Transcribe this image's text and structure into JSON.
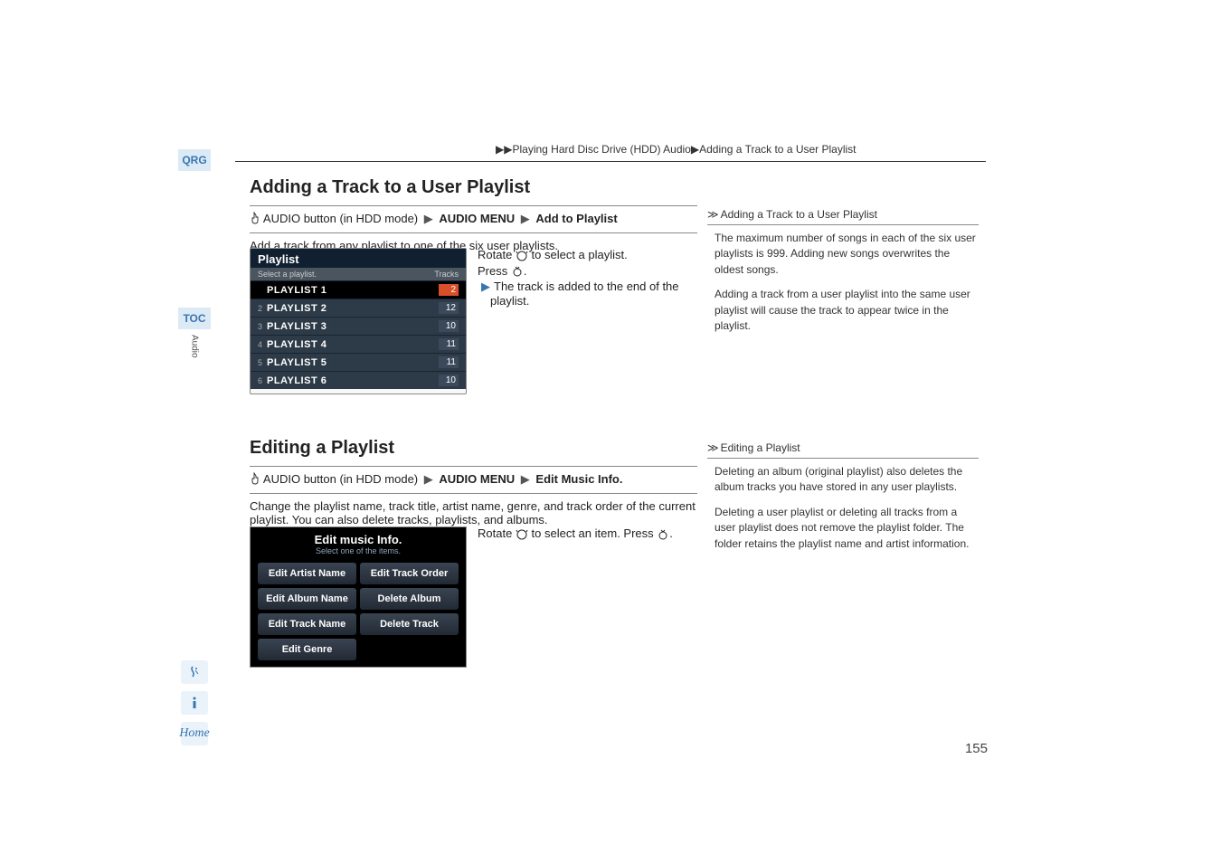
{
  "breadcrumb": {
    "arrow": "▶▶",
    "part1": "Playing Hard Disc Drive (HDD) Audio",
    "arrow2": "▶",
    "part2": "Adding a Track to a User Playlist"
  },
  "left_rail": {
    "qrg": "QRG",
    "toc": "TOC",
    "audio": "Audio",
    "voice_icon": "🎤",
    "info_icon": "i",
    "home": "Home"
  },
  "section1": {
    "title": "Adding a Track to a User Playlist",
    "path_prefix": "AUDIO button (in HDD mode)",
    "path_mid": "AUDIO MENU",
    "path_end": "Add to Playlist",
    "intro": "Add a track from any playlist to one of the six user playlists.",
    "instr_rotate": "Rotate ",
    "instr_rotate_suffix": " to select a playlist.",
    "instr_press": "Press ",
    "instr_press_suffix": ".",
    "instr_result": "The track is added to the end of the playlist."
  },
  "playlist": {
    "title": "Playlist",
    "sub_left": "Select a playlist.",
    "sub_right": "Tracks",
    "rows": [
      {
        "num": "",
        "name": "PLAYLIST 1",
        "tracks": "2",
        "selected": true
      },
      {
        "num": "2",
        "name": "PLAYLIST 2",
        "tracks": "12",
        "selected": false
      },
      {
        "num": "3",
        "name": "PLAYLIST 3",
        "tracks": "10",
        "selected": false
      },
      {
        "num": "4",
        "name": "PLAYLIST 4",
        "tracks": "11",
        "selected": false
      },
      {
        "num": "5",
        "name": "PLAYLIST 5",
        "tracks": "11",
        "selected": false
      },
      {
        "num": "6",
        "name": "PLAYLIST 6",
        "tracks": "10",
        "selected": false
      }
    ]
  },
  "sidebar1": {
    "title": "Adding a Track to a User Playlist",
    "p1": "The maximum number of songs in each of the six user playlists is 999. Adding new songs overwrites the oldest songs.",
    "p2": "Adding a track from a user playlist into the same user playlist will cause the track to appear twice in the playlist."
  },
  "section2": {
    "title": "Editing a Playlist",
    "path_prefix": "AUDIO button (in HDD mode)",
    "path_mid": "AUDIO MENU",
    "path_end": "Edit Music Info.",
    "intro": "Change the playlist name, track title, artist name, genre, and track order of the current playlist. You can also delete tracks, playlists, and albums.",
    "instr_rotate": "Rotate ",
    "instr_rotate_suffix": " to select an item. Press ",
    "instr_end": "."
  },
  "editbox": {
    "title": "Edit music Info.",
    "sub": "Select one of the items.",
    "cells": [
      "Edit Artist Name",
      "Edit Track Order",
      "Edit Album Name",
      "Delete Album",
      "Edit Track Name",
      "Delete Track",
      "Edit Genre",
      ""
    ]
  },
  "sidebar2": {
    "title": "Editing a Playlist",
    "p1": "Deleting an album (original playlist) also deletes the album tracks you have stored in any user playlists.",
    "p2": "Deleting a user playlist or deleting all tracks from a user playlist does not remove the playlist folder. The folder retains the playlist name and artist information."
  },
  "icons": {
    "triangle": "▶",
    "double_arrow": "≫"
  },
  "page_number": "155"
}
